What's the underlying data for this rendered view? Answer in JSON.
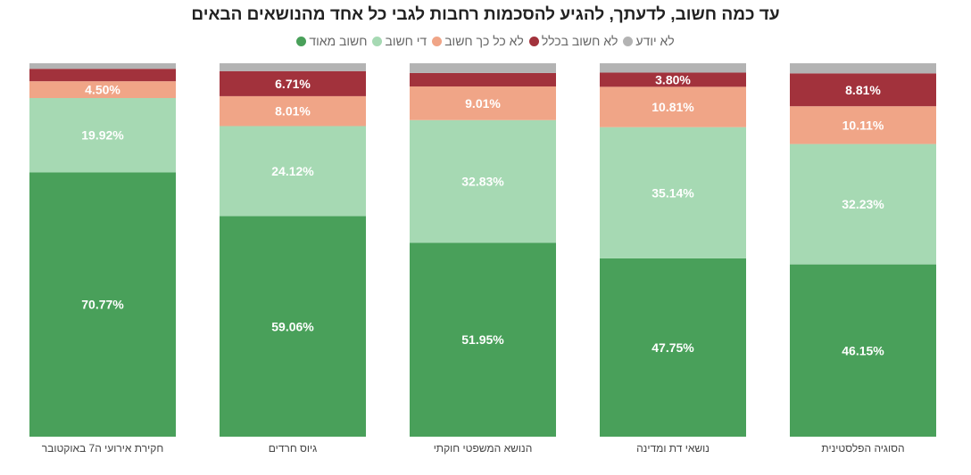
{
  "chart_data": {
    "type": "bar",
    "stacked": true,
    "normalized": true,
    "title": "עד כמה חשוב, לדעתך, להגיע להסכמות רחבות לגבי כל אחד מהנושאים הבאים",
    "xlabel": "",
    "ylabel": "",
    "ylim": [
      0,
      100
    ],
    "legend_position": "top",
    "categories": [
      "חקירת אירועי ה7 באוקטובר",
      "גיוס חרדים",
      "הנושא המשפטי חוקתי",
      "נושאי דת ומדינה",
      "הסוגיה הפלסטינית"
    ],
    "series": [
      {
        "name": "חשוב מאוד",
        "color": "#49a05a",
        "values": [
          70.77,
          59.06,
          51.95,
          47.75,
          46.15
        ],
        "labels": [
          "70.77%",
          "59.06%",
          "51.95%",
          "47.75%",
          "46.15%"
        ]
      },
      {
        "name": "די חשוב",
        "color": "#a6d9b3",
        "values": [
          19.92,
          24.12,
          32.83,
          35.14,
          32.23
        ],
        "labels": [
          "19.92%",
          "24.12%",
          "32.83%",
          "35.14%",
          "32.23%"
        ]
      },
      {
        "name": "לא כל כך חשוב",
        "color": "#f0a587",
        "values": [
          4.5,
          8.01,
          9.01,
          10.81,
          10.11
        ],
        "labels": [
          "4.50%",
          "8.01%",
          "9.01%",
          "10.81%",
          "10.11%"
        ]
      },
      {
        "name": "לא חשוב בכלל",
        "color": "#a2323c",
        "values": [
          3.33,
          6.71,
          3.6,
          3.8,
          8.81
        ],
        "labels": [
          "",
          "6.71%",
          "",
          "3.80%",
          "8.81%"
        ]
      },
      {
        "name": "לא יודע",
        "color": "#b3b3b3",
        "values": [
          1.48,
          2.1,
          2.61,
          2.5,
          2.7
        ],
        "labels": [
          "",
          "",
          "",
          "",
          ""
        ]
      }
    ],
    "legend_order": [
      "לא יודע",
      "לא חשוב בכלל",
      "לא כל כך חשוב",
      "די חשוב",
      "חשוב מאוד"
    ]
  }
}
